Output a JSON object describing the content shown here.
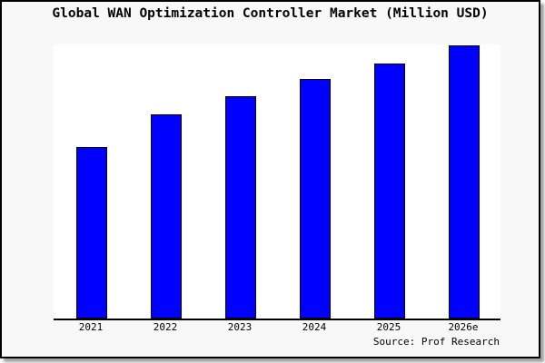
{
  "chart_data": {
    "type": "bar",
    "title": "Global WAN Optimization Controller Market (Million USD)",
    "categories": [
      "2021",
      "2022",
      "2023",
      "2024",
      "2025",
      "2026e"
    ],
    "values": [
      100,
      119.4,
      129.8,
      139.7,
      149.0,
      159.3
    ],
    "values_note": "relative units estimated from bar heights; no y-axis scale, ticks or gridlines are shown in the image",
    "xlabel": "",
    "ylabel": "",
    "ylim": [
      0,
      160
    ],
    "grid": false,
    "legend": false,
    "bar_color": "#0000ff",
    "bar_border_color": "#000000"
  },
  "source": "Source: Prof Research",
  "colors": {
    "background": "#f8f8f8",
    "plot_background": "#ffffff",
    "frame_border": "#000000",
    "shadow": "#a0a0a0",
    "text": "#000000"
  }
}
